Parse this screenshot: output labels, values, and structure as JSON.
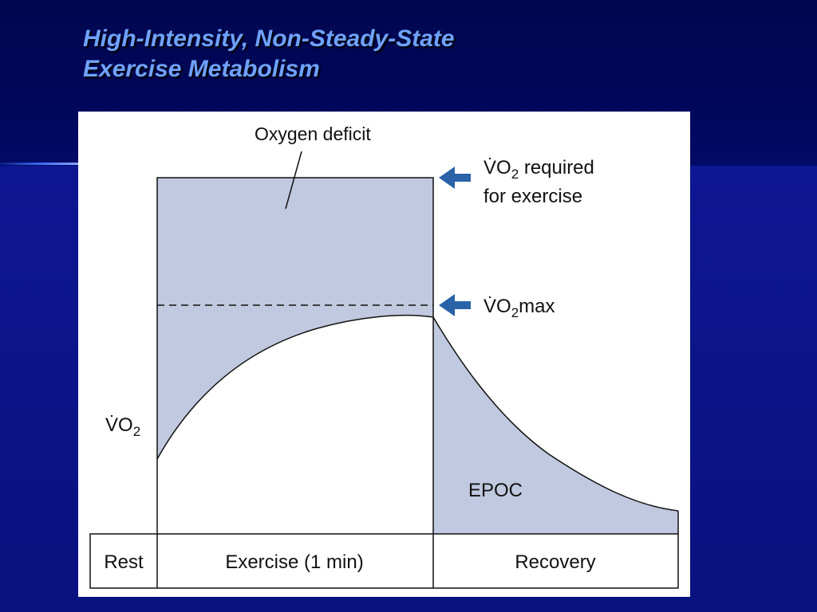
{
  "slide": {
    "title_line1": "High-Intensity, Non-Steady-State",
    "title_line2": "Exercise Metabolism"
  },
  "diagram": {
    "oxygen_deficit_label": "Oxygen deficit",
    "vo2_required_label": {
      "symbol": "V̇O",
      "subscript": "2",
      "suffix": " required",
      "line2": "for exercise"
    },
    "vo2max_label": {
      "symbol": "V̇O",
      "subscript": "2",
      "suffix": "max"
    },
    "y_axis_label": {
      "symbol": "V̇O",
      "subscript": "2"
    },
    "epoc_label": "EPOC",
    "phases": [
      "Rest",
      "Exercise (1 min)",
      "Recovery"
    ]
  },
  "colors": {
    "shade": "#c0c9df",
    "arrow": "#2a62a8",
    "title": "#6fa2ff"
  }
}
